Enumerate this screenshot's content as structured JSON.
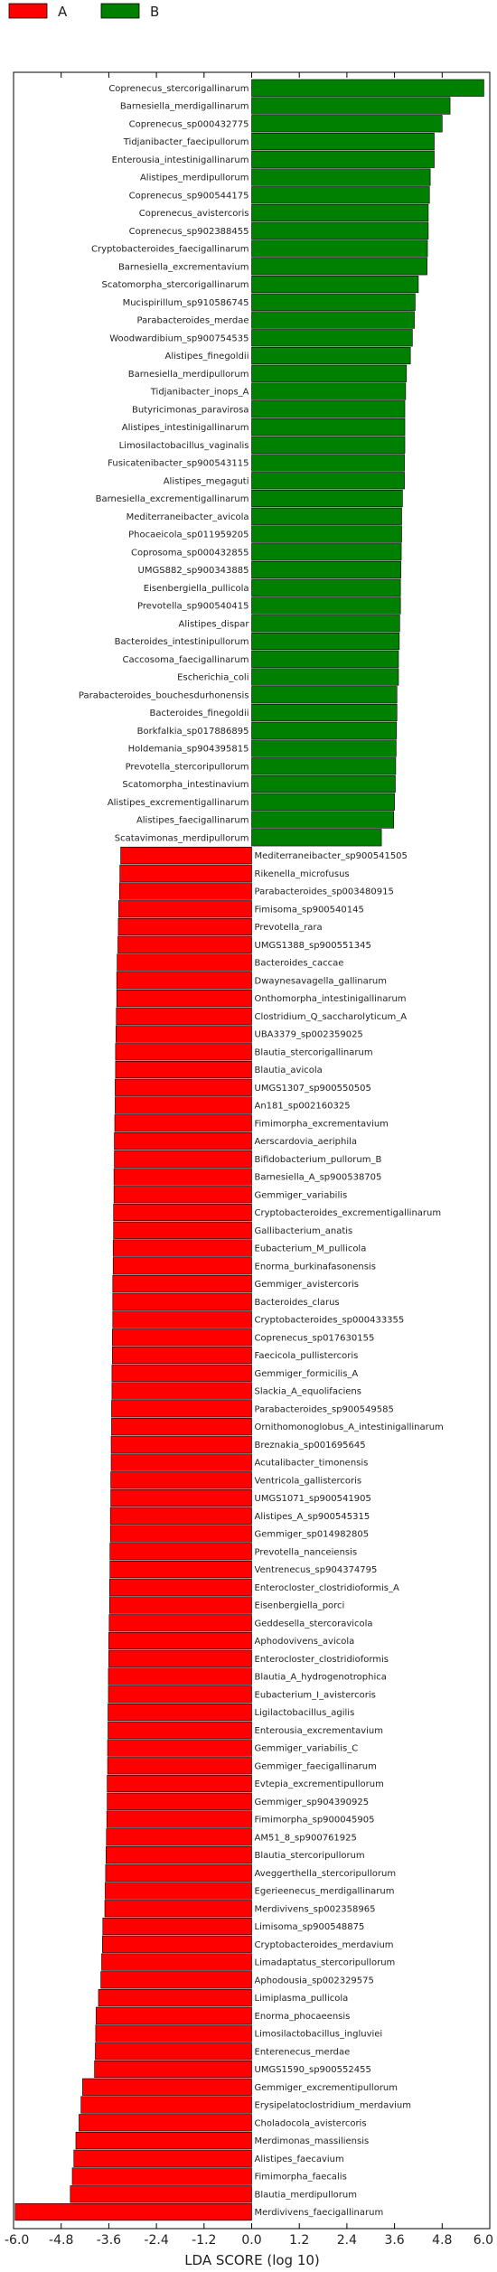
{
  "chart_data": {
    "type": "bar",
    "orientation": "horizontal",
    "xlabel": "LDA SCORE (log 10)",
    "xlim": [
      -6.0,
      6.0
    ],
    "xticks": [
      -6.0,
      -4.8,
      -3.6,
      -2.4,
      -1.2,
      0.0,
      1.2,
      2.4,
      3.6,
      4.8,
      6.0
    ],
    "tick_labels": [
      "-6.0",
      "-4.8",
      "-3.6",
      "-2.4",
      "-1.2",
      "0.0",
      "1.2",
      "2.4",
      "3.6",
      "4.8",
      "6.0"
    ],
    "legend": [
      {
        "name": "A",
        "color": "#ff0000"
      },
      {
        "name": "B",
        "color": "#008000"
      }
    ],
    "grid": false,
    "legend_position": "top-left",
    "bars": [
      {
        "label": "Coprenecus_stercorigallinarum",
        "value": 5.85,
        "group": "B"
      },
      {
        "label": "Barnesiella_merdigallinarum",
        "value": 5.0,
        "group": "B"
      },
      {
        "label": "Coprenecus_sp000432775",
        "value": 4.8,
        "group": "B"
      },
      {
        "label": "Tidjanibacter_faecipullorum",
        "value": 4.6,
        "group": "B"
      },
      {
        "label": "Enterousia_intestinigallinarum",
        "value": 4.6,
        "group": "B"
      },
      {
        "label": "Alistipes_merdipullorum",
        "value": 4.5,
        "group": "B"
      },
      {
        "label": "Coprenecus_sp900544175",
        "value": 4.48,
        "group": "B"
      },
      {
        "label": "Coprenecus_avistercoris",
        "value": 4.45,
        "group": "B"
      },
      {
        "label": "Coprenecus_sp902388455",
        "value": 4.45,
        "group": "B"
      },
      {
        "label": "Cryptobacteroides_faecigallinarum",
        "value": 4.43,
        "group": "B"
      },
      {
        "label": "Barnesiella_excrementavium",
        "value": 4.42,
        "group": "B"
      },
      {
        "label": "Scatomorpha_stercorigallinarum",
        "value": 4.2,
        "group": "B"
      },
      {
        "label": "Mucispirillum_sp910586745",
        "value": 4.12,
        "group": "B"
      },
      {
        "label": "Parabacteroides_merdae",
        "value": 4.1,
        "group": "B"
      },
      {
        "label": "Woodwardibium_sp900754535",
        "value": 4.05,
        "group": "B"
      },
      {
        "label": "Alistipes_finegoldii",
        "value": 4.0,
        "group": "B"
      },
      {
        "label": "Barnesiella_merdipullorum",
        "value": 3.9,
        "group": "B"
      },
      {
        "label": "Tidjanibacter_inops_A",
        "value": 3.88,
        "group": "B"
      },
      {
        "label": "Butyricimonas_paravirosa",
        "value": 3.86,
        "group": "B"
      },
      {
        "label": "Alistipes_intestinigallinarum",
        "value": 3.86,
        "group": "B"
      },
      {
        "label": "Limosilactobacillus_vaginalis",
        "value": 3.86,
        "group": "B"
      },
      {
        "label": "Fusicatenibacter_sp900543115",
        "value": 3.85,
        "group": "B"
      },
      {
        "label": "Alistipes_megaguti",
        "value": 3.85,
        "group": "B"
      },
      {
        "label": "Barnesiella_excrementigallinarum",
        "value": 3.8,
        "group": "B"
      },
      {
        "label": "Mediterraneibacter_avicola",
        "value": 3.78,
        "group": "B"
      },
      {
        "label": "Phocaeicola_sp011959205",
        "value": 3.78,
        "group": "B"
      },
      {
        "label": "Coprosoma_sp000432855",
        "value": 3.77,
        "group": "B"
      },
      {
        "label": "UMGS882_sp900343885",
        "value": 3.76,
        "group": "B"
      },
      {
        "label": "Eisenbergiella_pullicola",
        "value": 3.75,
        "group": "B"
      },
      {
        "label": "Prevotella_sp900540415",
        "value": 3.75,
        "group": "B"
      },
      {
        "label": "Alistipes_dispar",
        "value": 3.73,
        "group": "B"
      },
      {
        "label": "Bacteroides_intestinipullorum",
        "value": 3.72,
        "group": "B"
      },
      {
        "label": "Caccosoma_faecigallinarum",
        "value": 3.7,
        "group": "B"
      },
      {
        "label": "Escherichia_coli",
        "value": 3.7,
        "group": "B"
      },
      {
        "label": "Parabacteroides_bouchesdurhonensis",
        "value": 3.66,
        "group": "B"
      },
      {
        "label": "Bacteroides_finegoldii",
        "value": 3.66,
        "group": "B"
      },
      {
        "label": "Borkfalkia_sp017886895",
        "value": 3.65,
        "group": "B"
      },
      {
        "label": "Holdemania_sp904395815",
        "value": 3.64,
        "group": "B"
      },
      {
        "label": "Prevotella_stercoripullorum",
        "value": 3.63,
        "group": "B"
      },
      {
        "label": "Scatomorpha_intestinavium",
        "value": 3.62,
        "group": "B"
      },
      {
        "label": "Alistipes_excrementigallinarum",
        "value": 3.6,
        "group": "B"
      },
      {
        "label": "Alistipes_faecigallinarum",
        "value": 3.58,
        "group": "B"
      },
      {
        "label": "Scatavimonas_merdipullorum",
        "value": 3.27,
        "group": "B"
      },
      {
        "label": "Mediterraneibacter_sp900541505",
        "value": -3.3,
        "group": "A"
      },
      {
        "label": "Rikenella_microfusus",
        "value": -3.32,
        "group": "A"
      },
      {
        "label": "Parabacteroides_sp003480915",
        "value": -3.33,
        "group": "A"
      },
      {
        "label": "Fimisoma_sp900540145",
        "value": -3.35,
        "group": "A"
      },
      {
        "label": "Prevotella_rara",
        "value": -3.36,
        "group": "A"
      },
      {
        "label": "UMGS1388_sp900551345",
        "value": -3.37,
        "group": "A"
      },
      {
        "label": "Bacteroides_caccae",
        "value": -3.39,
        "group": "A"
      },
      {
        "label": "Dwaynesavagella_gallinarum",
        "value": -3.4,
        "group": "A"
      },
      {
        "label": "Onthomorpha_intestinigallinarum",
        "value": -3.4,
        "group": "A"
      },
      {
        "label": "Clostridium_Q_saccharolyticum_A",
        "value": -3.41,
        "group": "A"
      },
      {
        "label": "UBA3379_sp002359025",
        "value": -3.42,
        "group": "A"
      },
      {
        "label": "Blautia_stercorigallinarum",
        "value": -3.43,
        "group": "A"
      },
      {
        "label": "Blautia_avicola",
        "value": -3.43,
        "group": "A"
      },
      {
        "label": "UMGS1307_sp900550505",
        "value": -3.44,
        "group": "A"
      },
      {
        "label": "An181_sp002160325",
        "value": -3.44,
        "group": "A"
      },
      {
        "label": "Fimimorpha_excrementavium",
        "value": -3.45,
        "group": "A"
      },
      {
        "label": "Aerscardovia_aeriphila",
        "value": -3.46,
        "group": "A"
      },
      {
        "label": "Bifidobacterium_pullorum_B",
        "value": -3.46,
        "group": "A"
      },
      {
        "label": "Barnesiella_A_sp900538705",
        "value": -3.47,
        "group": "A"
      },
      {
        "label": "Gemmiger_variabilis",
        "value": -3.47,
        "group": "A"
      },
      {
        "label": "Cryptobacteroides_excrementigallinarum",
        "value": -3.48,
        "group": "A"
      },
      {
        "label": "Gallibacterium_anatis",
        "value": -3.48,
        "group": "A"
      },
      {
        "label": "Eubacterium_M_pullicola",
        "value": -3.49,
        "group": "A"
      },
      {
        "label": "Enorma_burkinafasonensis",
        "value": -3.49,
        "group": "A"
      },
      {
        "label": "Gemmiger_avistercoris",
        "value": -3.5,
        "group": "A"
      },
      {
        "label": "Bacteroides_clarus",
        "value": -3.5,
        "group": "A"
      },
      {
        "label": "Cryptobacteroides_sp000433355",
        "value": -3.5,
        "group": "A"
      },
      {
        "label": "Coprenecus_sp017630155",
        "value": -3.51,
        "group": "A"
      },
      {
        "label": "Faecicola_pullistercoris",
        "value": -3.51,
        "group": "A"
      },
      {
        "label": "Gemmiger_formicilis_A",
        "value": -3.52,
        "group": "A"
      },
      {
        "label": "Slackia_A_equolifaciens",
        "value": -3.52,
        "group": "A"
      },
      {
        "label": "Parabacteroides_sp900549585",
        "value": -3.53,
        "group": "A"
      },
      {
        "label": "Ornithomonoglobus_A_intestinigallinarum",
        "value": -3.53,
        "group": "A"
      },
      {
        "label": "Breznakia_sp001695645",
        "value": -3.54,
        "group": "A"
      },
      {
        "label": "Acutalibacter_timonensis",
        "value": -3.54,
        "group": "A"
      },
      {
        "label": "Ventricola_gallistercoris",
        "value": -3.55,
        "group": "A"
      },
      {
        "label": "UMGS1071_sp900541905",
        "value": -3.55,
        "group": "A"
      },
      {
        "label": "Alistipes_A_sp900545315",
        "value": -3.56,
        "group": "A"
      },
      {
        "label": "Gemmiger_sp014982805",
        "value": -3.56,
        "group": "A"
      },
      {
        "label": "Prevotella_nanceiensis",
        "value": -3.57,
        "group": "A"
      },
      {
        "label": "Ventrenecus_sp904374795",
        "value": -3.57,
        "group": "A"
      },
      {
        "label": "Enterocloster_clostridioformis_A",
        "value": -3.58,
        "group": "A"
      },
      {
        "label": "Eisenbergiella_porci",
        "value": -3.58,
        "group": "A"
      },
      {
        "label": "Geddesella_stercoravicola",
        "value": -3.59,
        "group": "A"
      },
      {
        "label": "Aphodovivens_avicola",
        "value": -3.6,
        "group": "A"
      },
      {
        "label": "Enterocloster_clostridioformis",
        "value": -3.6,
        "group": "A"
      },
      {
        "label": "Blautia_A_hydrogenotrophica",
        "value": -3.61,
        "group": "A"
      },
      {
        "label": "Eubacterium_I_avistercoris",
        "value": -3.61,
        "group": "A"
      },
      {
        "label": "Ligilactobacillus_agilis",
        "value": -3.62,
        "group": "A"
      },
      {
        "label": "Enterousia_excrementavium",
        "value": -3.62,
        "group": "A"
      },
      {
        "label": "Gemmiger_variabilis_C",
        "value": -3.63,
        "group": "A"
      },
      {
        "label": "Gemmiger_faecigallinarum",
        "value": -3.63,
        "group": "A"
      },
      {
        "label": "Evtepia_excrementipullorum",
        "value": -3.64,
        "group": "A"
      },
      {
        "label": "Gemmiger_sp904390925",
        "value": -3.64,
        "group": "A"
      },
      {
        "label": "Fimimorpha_sp900045905",
        "value": -3.65,
        "group": "A"
      },
      {
        "label": "AM51_8_sp900761925",
        "value": -3.66,
        "group": "A"
      },
      {
        "label": "Blautia_stercoripullorum",
        "value": -3.67,
        "group": "A"
      },
      {
        "label": "Aveggerthella_stercoripullorum",
        "value": -3.68,
        "group": "A"
      },
      {
        "label": "Egerieenecus_merdigallinarum",
        "value": -3.69,
        "group": "A"
      },
      {
        "label": "Merdivivens_sp002358965",
        "value": -3.7,
        "group": "A"
      },
      {
        "label": "Limisoma_sp900548875",
        "value": -3.75,
        "group": "A"
      },
      {
        "label": "Cryptobacteroides_merdavium",
        "value": -3.76,
        "group": "A"
      },
      {
        "label": "Limadaptatus_stercoripullorum",
        "value": -3.78,
        "group": "A"
      },
      {
        "label": "Aphodousia_sp002329575",
        "value": -3.8,
        "group": "A"
      },
      {
        "label": "Limiplasma_pullicola",
        "value": -3.86,
        "group": "A"
      },
      {
        "label": "Enorma_phocaeensis",
        "value": -3.92,
        "group": "A"
      },
      {
        "label": "Limosilactobacillus_ingluviei",
        "value": -3.93,
        "group": "A"
      },
      {
        "label": "Enterenecus_merdae",
        "value": -3.94,
        "group": "A"
      },
      {
        "label": "UMGS1590_sp900552455",
        "value": -3.96,
        "group": "A"
      },
      {
        "label": "Gemmiger_excrementipullorum",
        "value": -4.26,
        "group": "A"
      },
      {
        "label": "Erysipelatoclostridium_merdavium",
        "value": -4.3,
        "group": "A"
      },
      {
        "label": "Choladocola_avistercoris",
        "value": -4.35,
        "group": "A"
      },
      {
        "label": "Merdimonas_massiliensis",
        "value": -4.43,
        "group": "A"
      },
      {
        "label": "Alistipes_faecavium",
        "value": -4.48,
        "group": "A"
      },
      {
        "label": "Fimimorpha_faecalis",
        "value": -4.52,
        "group": "A"
      },
      {
        "label": "Blautia_merdipullorum",
        "value": -4.57,
        "group": "A"
      },
      {
        "label": "Merdivivens_faecigallinarum",
        "value": -5.96,
        "group": "A"
      }
    ]
  }
}
